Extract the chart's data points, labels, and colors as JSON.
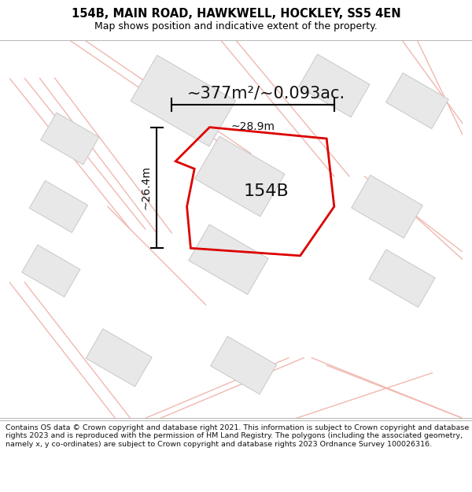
{
  "title": "154B, MAIN ROAD, HAWKWELL, HOCKLEY, SS5 4EN",
  "subtitle": "Map shows position and indicative extent of the property.",
  "footer": "Contains OS data © Crown copyright and database right 2021. This information is subject to Crown copyright and database rights 2023 and is reproduced with the permission of HM Land Registry. The polygons (including the associated geometry, namely x, y co-ordinates) are subject to Crown copyright and database rights 2023 Ordnance Survey 100026316.",
  "area_label": "~377m²/~0.093ac.",
  "label_154b": "154B",
  "dim_height": "~26.4m",
  "dim_width": "~28.9m",
  "bg_color": "#ffffff",
  "map_bg": "#ffffff",
  "road_color": "#f0b8b0",
  "building_color": "#e8e8e8",
  "building_edge": "#c8c8c8",
  "main_poly_color": "#dd0000",
  "title_fontsize": 10.5,
  "subtitle_fontsize": 9,
  "area_fontsize": 15,
  "label_fontsize": 16,
  "dim_fontsize": 10,
  "footer_fontsize": 6.8
}
